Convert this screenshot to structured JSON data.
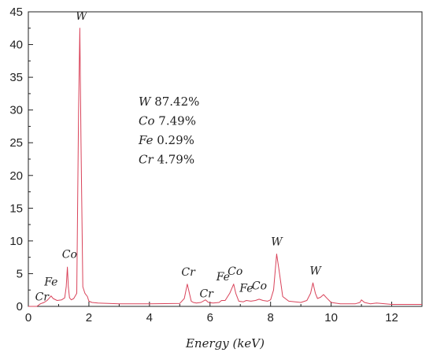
{
  "chart_data": {
    "type": "line",
    "xlabel": "Energy (keV)",
    "ylabel": "",
    "xlim": [
      0,
      13
    ],
    "ylim": [
      0,
      45
    ],
    "x_ticks": [
      "0",
      "2",
      "4",
      "6",
      "8",
      "10",
      "12"
    ],
    "y_ticks": [
      "0",
      "5",
      "10",
      "15",
      "20",
      "25",
      "30",
      "35",
      "40",
      "45"
    ],
    "grid": false,
    "line_color": "#d9435a",
    "series": [
      {
        "x": [
          0.0,
          0.28,
          0.4,
          0.52,
          0.62,
          0.7,
          0.75,
          0.82,
          0.95,
          1.1,
          1.2,
          1.25,
          1.29,
          1.32,
          1.36,
          1.42,
          1.5,
          1.6,
          1.66,
          1.7,
          1.74,
          1.8,
          1.87,
          1.95,
          2.0,
          2.1,
          2.3,
          3.0,
          4.0,
          5.0,
          5.15,
          5.25,
          5.32,
          5.38,
          5.45,
          5.55,
          5.7,
          5.85,
          5.95,
          6.1,
          6.3,
          6.38,
          6.5,
          6.65,
          6.78,
          6.85,
          6.95,
          7.1,
          7.2,
          7.35,
          7.5,
          7.62,
          7.75,
          7.9,
          8.0,
          8.1,
          8.2,
          8.28,
          8.4,
          8.6,
          9.0,
          9.2,
          9.32,
          9.4,
          9.48,
          9.55,
          9.65,
          9.75,
          9.85,
          10.0,
          10.3,
          10.8,
          10.95,
          11.0,
          11.1,
          11.3,
          11.5,
          12.0,
          13.0
        ],
        "values": [
          0,
          0,
          0.4,
          0.6,
          0.9,
          1.3,
          1.6,
          1.2,
          0.9,
          1.0,
          1.3,
          3.0,
          6.0,
          3.0,
          1.3,
          1.0,
          1.2,
          2.0,
          30.0,
          42.5,
          25.0,
          3.0,
          2.0,
          1.5,
          0.8,
          0.6,
          0.5,
          0.4,
          0.4,
          0.45,
          1.2,
          3.4,
          2.0,
          0.8,
          0.6,
          0.5,
          0.6,
          1.0,
          0.6,
          0.5,
          0.6,
          0.9,
          0.9,
          2.0,
          3.4,
          2.0,
          0.8,
          0.7,
          0.9,
          0.8,
          0.9,
          1.1,
          0.9,
          0.8,
          1.0,
          2.5,
          8.0,
          5.5,
          1.5,
          0.8,
          0.6,
          0.9,
          2.0,
          3.6,
          2.0,
          1.2,
          1.4,
          1.8,
          1.3,
          0.6,
          0.4,
          0.4,
          0.6,
          1.0,
          0.6,
          0.4,
          0.5,
          0.3,
          0.3
        ]
      }
    ],
    "peak_labels": [
      {
        "text": "Cr",
        "x": 0.45,
        "y": 0.9
      },
      {
        "text": "Fe",
        "x": 0.75,
        "y": 3.2
      },
      {
        "text": "Co",
        "x": 1.36,
        "y": 7.4
      },
      {
        "text": "W",
        "x": 1.75,
        "y": 43.8
      },
      {
        "text": "Cr",
        "x": 5.28,
        "y": 4.7
      },
      {
        "text": "Cr",
        "x": 5.88,
        "y": 1.4
      },
      {
        "text": "Fe",
        "x": 6.43,
        "y": 4.0
      },
      {
        "text": "Co",
        "x": 6.83,
        "y": 4.8
      },
      {
        "text": "Fe",
        "x": 7.2,
        "y": 2.2
      },
      {
        "text": "Co",
        "x": 7.63,
        "y": 2.6
      },
      {
        "text": "W",
        "x": 8.2,
        "y": 9.3
      },
      {
        "text": "W",
        "x": 9.48,
        "y": 4.9
      }
    ],
    "composition": [
      {
        "element": "W",
        "value": "87.42%"
      },
      {
        "element": "Co",
        "value": "7.49%"
      },
      {
        "element": "Fe",
        "value": "0.29%"
      },
      {
        "element": "Cr",
        "value": "4.79%"
      }
    ]
  }
}
